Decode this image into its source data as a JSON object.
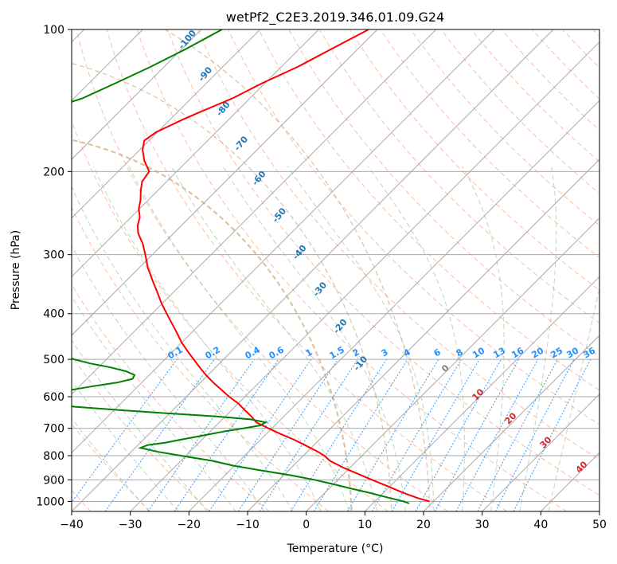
{
  "chart_data": {
    "type": "line",
    "subtype": "skew-t log-p diagram",
    "title": "wetPf2_C2E3.2019.346.01.09.G24",
    "xlabel": "Temperature (°C)",
    "ylabel": "Pressure (hPa)",
    "xlim": [
      -40,
      50
    ],
    "ylim": [
      1050,
      100
    ],
    "y_scale": "log",
    "grid": true,
    "x_ticks": [
      -40,
      -30,
      -20,
      -10,
      0,
      10,
      20,
      30,
      40,
      50
    ],
    "y_ticks": [
      100,
      200,
      300,
      400,
      500,
      600,
      700,
      800,
      900,
      1000
    ],
    "series": [
      {
        "color": "#ff0000",
        "pressure": [
          1000,
          985,
          960,
          930,
          900,
          880,
          850,
          820,
          800,
          780,
          760,
          740,
          720,
          700,
          680,
          660,
          640,
          620,
          600,
          580,
          560,
          540,
          520,
          500,
          480,
          460,
          440,
          420,
          400,
          380,
          360,
          340,
          320,
          300,
          285,
          270,
          260,
          250,
          240,
          230,
          220,
          210,
          200,
          190,
          180,
          172,
          165,
          160,
          155,
          150,
          140,
          130,
          120,
          110,
          100
        ],
        "temperature": [
          19.3,
          16.9,
          13.5,
          9.8,
          5.8,
          3.2,
          -0.9,
          -4.6,
          -6.4,
          -8.8,
          -11.5,
          -14.3,
          -17.5,
          -20.6,
          -23.7,
          -25.6,
          -27.8,
          -30.0,
          -32.7,
          -35.2,
          -37.8,
          -40.3,
          -42.7,
          -45.1,
          -47.6,
          -50.1,
          -52.4,
          -54.9,
          -57.5,
          -60.2,
          -62.8,
          -65.6,
          -68.5,
          -71.2,
          -73.4,
          -76.1,
          -77.5,
          -78.5,
          -80.1,
          -81.3,
          -82.8,
          -84.2,
          -84.7,
          -87.3,
          -89.5,
          -90.8,
          -90.2,
          -89.0,
          -87.8,
          -86.3,
          -83.0,
          -80.5,
          -77.2,
          -74.5,
          -71.5
        ]
      },
      {
        "color": "#008000",
        "pressure": [
          1010,
          1000,
          980,
          960,
          940,
          920,
          900,
          880,
          860,
          840,
          820,
          800,
          785,
          770,
          760,
          750,
          740,
          730,
          720,
          710,
          700,
          690,
          680,
          670,
          660,
          650,
          640,
          630,
          620,
          610,
          600,
          590,
          580,
          570,
          560,
          550,
          540,
          530,
          520,
          510,
          500,
          480,
          460,
          440,
          420,
          400,
          380,
          360,
          350,
          340,
          320,
          310,
          300,
          290,
          280,
          270,
          260,
          255,
          250,
          240,
          230,
          220,
          210,
          200,
          190,
          180,
          170,
          160,
          150,
          145,
          140,
          130,
          120,
          110,
          100
        ],
        "dewpoint": [
          16.2,
          14.9,
          11.3,
          7.8,
          3.9,
          0.1,
          -4.0,
          -8.8,
          -14.6,
          -20.2,
          -24.7,
          -30.9,
          -35.4,
          -39.1,
          -38.4,
          -35.5,
          -33.7,
          -31.6,
          -29.5,
          -27.5,
          -24.9,
          -22.5,
          -22.1,
          -25.2,
          -32.0,
          -40.9,
          -49.4,
          -57.3,
          -62.7,
          -65.0,
          -65.9,
          -63.4,
          -60.7,
          -57.7,
          -54.2,
          -52.2,
          -52.5,
          -54.6,
          -57.9,
          -62.1,
          -65.5,
          -70.5,
          -72.7,
          -75.5,
          -79.1,
          -83.3,
          -85.9,
          -85.8,
          -84.7,
          -85.3,
          -86.6,
          -85.3,
          -84.7,
          -86.9,
          -91.0,
          -95.7,
          -98.8,
          -99.7,
          -99.3,
          -98.2,
          -98.5,
          -99.8,
          -101.1,
          -103.2,
          -105.7,
          -108.4,
          -110.8,
          -113.2,
          -112.9,
          -111.2,
          -108.6,
          -105.5,
          -102.3,
          -99.3,
          -96.5
        ]
      }
    ],
    "dry_adiabat_labels": [
      "-100",
      "-90",
      "-80",
      "-70",
      "-60",
      "-50",
      "-40",
      "-30",
      "-20",
      "-10"
    ],
    "moist_adiabat_labels": [
      "0",
      "10",
      "20",
      "30",
      "40"
    ],
    "mixing_ratio_labels": [
      "0.1",
      "0.2",
      "0.4",
      "0.6",
      "1",
      "1.5",
      "2",
      "3",
      "4",
      "6",
      "8",
      "10",
      "13",
      "16",
      "20",
      "25",
      "30",
      "36"
    ],
    "colors": {
      "temperature_line": "#ff0000",
      "dewpoint_line": "#008000",
      "isotherms": "#a9a9a9",
      "dry_adiabats": "#ffa07a",
      "moist_adiabats": "#8fbc8f",
      "mixing_ratio": "#1e90ff",
      "dry_adiabat_label": "#1f77b4",
      "moist_adiabat_label": "#d62728",
      "mixing_ratio_label": "#1e90ff",
      "zero_moist_label": "#808080",
      "background_arcs": "#d2b48c"
    }
  }
}
